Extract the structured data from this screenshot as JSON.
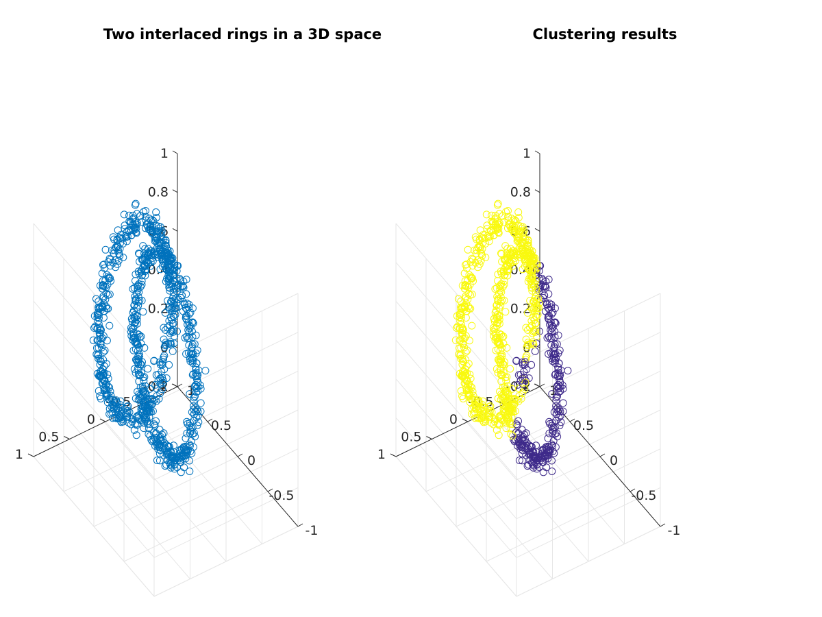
{
  "chart_data": [
    {
      "type": "scatter",
      "title": "Two interlaced rings in a 3D space",
      "xlim": [
        -1,
        1
      ],
      "ylim": [
        -1,
        1
      ],
      "zlim": [
        -0.2,
        1
      ],
      "xticks": [
        -1,
        -0.5,
        0,
        0.5,
        1
      ],
      "yticks": [
        -1,
        -0.5,
        0,
        0.5,
        1
      ],
      "zticks": [
        -0.2,
        0,
        0.2,
        0.4,
        0.6,
        0.8,
        1
      ],
      "xtick_labels": [
        "-1",
        "-0.5",
        "0",
        "0.5",
        "1"
      ],
      "ytick_labels": [
        "-1",
        "-0.5",
        "0",
        "0.5",
        "1"
      ],
      "ztick_labels": [
        "-0.2",
        "0",
        "0.2",
        "0.4",
        "0.6",
        "0.8",
        "1"
      ],
      "grid": true,
      "marker": "open circle",
      "series": [
        {
          "color": "#0072bd",
          "rings": [
            {
              "center": [
                0,
                0,
                0.5
              ],
              "radius": 0.5,
              "plane": "y = 0",
              "points": 500
            },
            {
              "center": [
                0.5,
                0,
                0.5
              ],
              "radius": 0.5,
              "plane": "x = 0.5",
              "points": 500
            }
          ]
        }
      ]
    },
    {
      "type": "scatter",
      "title": "Clustering results",
      "xlim": [
        -1,
        1
      ],
      "ylim": [
        -1,
        1
      ],
      "zlim": [
        -0.2,
        1
      ],
      "xticks": [
        -1,
        -0.5,
        0,
        0.5,
        1
      ],
      "yticks": [
        -1,
        -0.5,
        0,
        0.5,
        1
      ],
      "zticks": [
        -0.2,
        0,
        0.2,
        0.4,
        0.6,
        0.8,
        1
      ],
      "xtick_labels": [
        "-1",
        "-0.5",
        "0",
        "0.5",
        "1"
      ],
      "ytick_labels": [
        "-1",
        "-0.5",
        "0",
        "0.5",
        "1"
      ],
      "ztick_labels": [
        "-0.2",
        "0",
        "0.2",
        "0.4",
        "0.6",
        "0.8",
        "1"
      ],
      "grid": true,
      "marker": "open circle",
      "series": [
        {
          "color": "#3e2a8a",
          "rings": [
            {
              "center": [
                0,
                0,
                0.5
              ],
              "radius": 0.5,
              "plane": "y = 0",
              "points": 500
            },
            {
              "center": [
                0.5,
                0,
                0.5
              ],
              "radius": 0.5,
              "plane": "x = 0.5",
              "points": 500
            }
          ]
        },
        {
          "color": "#f9f90f",
          "rings": [
            {
              "center": [
                0,
                0,
                0.5
              ],
              "radius": 0.5,
              "plane": "y = 0",
              "points": 500
            },
            {
              "center": [
                0.5,
                0,
                0.5
              ],
              "radius": 0.5,
              "plane": "x = 0.5",
              "points": 500
            }
          ]
        }
      ]
    }
  ]
}
